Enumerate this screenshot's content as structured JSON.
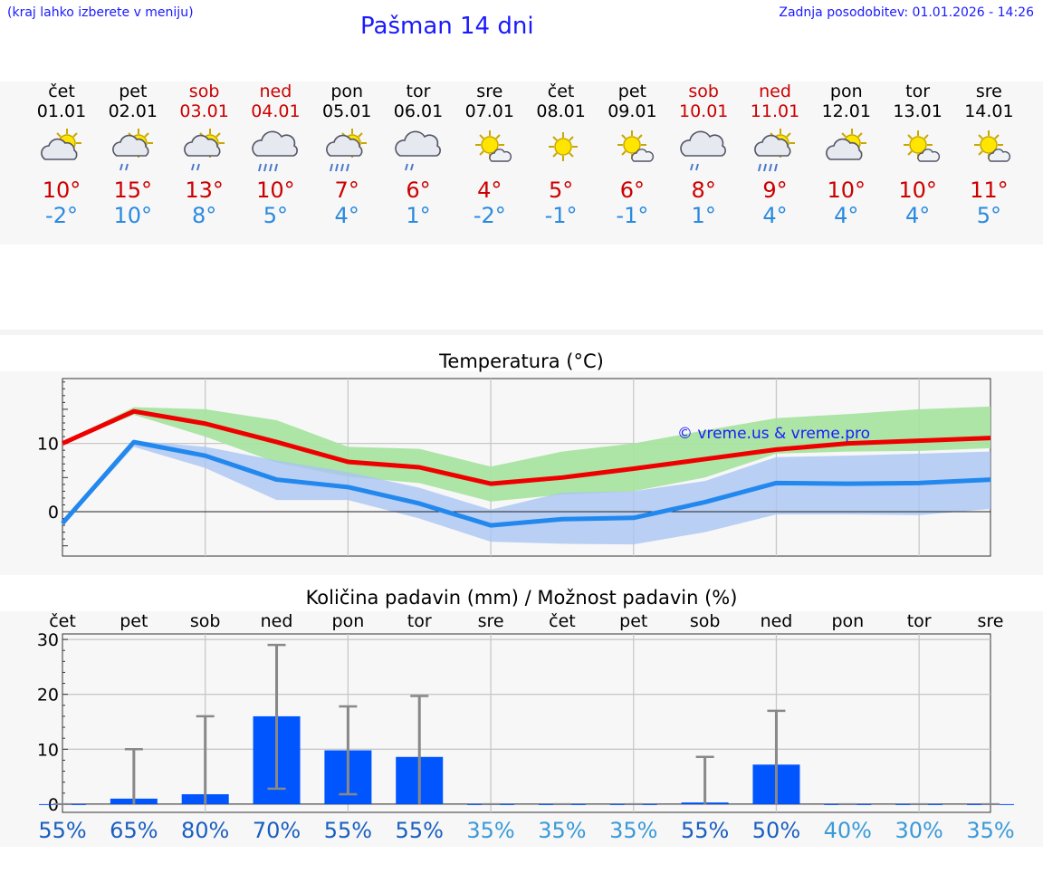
{
  "header": {
    "left_note": "(kraj lahko izberete v meniju)",
    "title": "Pašman 14 dni",
    "updated": "Zadnja posodobitev: 01.01.2026 - 14:26"
  },
  "days": [
    {
      "name": "čet",
      "date": "01.01",
      "weekend": false,
      "icon": "sun-cloud-icon",
      "tmax": "10°",
      "tmin": "-2°"
    },
    {
      "name": "pet",
      "date": "02.01",
      "weekend": false,
      "icon": "sun-cloud-rain-icon",
      "tmax": "15°",
      "tmin": "10°"
    },
    {
      "name": "sob",
      "date": "03.01",
      "weekend": true,
      "icon": "sun-cloud-rain-icon",
      "tmax": "13°",
      "tmin": "8°"
    },
    {
      "name": "ned",
      "date": "04.01",
      "weekend": true,
      "icon": "cloud-heavy-rain-icon",
      "tmax": "10°",
      "tmin": "5°"
    },
    {
      "name": "pon",
      "date": "05.01",
      "weekend": false,
      "icon": "sun-cloud-heavy-rain-icon",
      "tmax": "7°",
      "tmin": "4°"
    },
    {
      "name": "tor",
      "date": "06.01",
      "weekend": false,
      "icon": "cloud-rain-icon",
      "tmax": "6°",
      "tmin": "1°"
    },
    {
      "name": "sre",
      "date": "07.01",
      "weekend": false,
      "icon": "sun-small-cloud-icon",
      "tmax": "4°",
      "tmin": "-2°"
    },
    {
      "name": "čet",
      "date": "08.01",
      "weekend": false,
      "icon": "sun-icon",
      "tmax": "5°",
      "tmin": "-1°"
    },
    {
      "name": "pet",
      "date": "09.01",
      "weekend": false,
      "icon": "sun-small-cloud-icon",
      "tmax": "6°",
      "tmin": "-1°"
    },
    {
      "name": "sob",
      "date": "10.01",
      "weekend": true,
      "icon": "cloud-rain-icon",
      "tmax": "8°",
      "tmin": "1°"
    },
    {
      "name": "ned",
      "date": "11.01",
      "weekend": true,
      "icon": "sun-cloud-heavy-rain-icon",
      "tmax": "9°",
      "tmin": "4°"
    },
    {
      "name": "pon",
      "date": "12.01",
      "weekend": false,
      "icon": "sun-cloud-icon",
      "tmax": "10°",
      "tmin": "4°"
    },
    {
      "name": "tor",
      "date": "13.01",
      "weekend": false,
      "icon": "sun-small-cloud-icon",
      "tmax": "10°",
      "tmin": "4°"
    },
    {
      "name": "sre",
      "date": "14.01",
      "weekend": false,
      "icon": "sun-small-cloud-icon",
      "tmax": "11°",
      "tmin": "5°"
    }
  ],
  "colors": {
    "red": "#ee0000",
    "blue": "#2288ee",
    "green_band": "#a8e4a0",
    "blue_band": "#aac4f2",
    "bar": "#0055ff",
    "whisker": "#888888"
  },
  "chart_data": [
    {
      "type": "line",
      "title": "Temperatura (°C)",
      "watermark": "© vreme.us & vreme.pro",
      "x": [
        0,
        1,
        2,
        3,
        4,
        5,
        6,
        7,
        8,
        9,
        10,
        11,
        12,
        13
      ],
      "ylim": [
        -6.5,
        19.5
      ],
      "yticks": [
        0,
        10
      ],
      "series": [
        {
          "name": "max",
          "values": [
            10,
            14.7,
            12.9,
            10.2,
            7.3,
            6.5,
            4.1,
            5.0,
            6.3,
            7.7,
            9.1,
            10.0,
            10.4,
            10.8
          ]
        },
        {
          "name": "min",
          "values": [
            -1.7,
            10.2,
            8.2,
            4.7,
            3.6,
            1.2,
            -2.0,
            -1.1,
            -0.9,
            1.4,
            4.2,
            4.1,
            4.2,
            4.7
          ]
        }
      ],
      "bands": [
        {
          "name": "max-range",
          "upper": [
            10.2,
            15.3,
            15.0,
            13.4,
            9.5,
            9.2,
            6.6,
            8.8,
            10.0,
            11.9,
            13.7,
            14.3,
            15.0,
            15.4
          ],
          "lower": [
            9.8,
            14.2,
            11.0,
            7.2,
            5.1,
            4.2,
            1.5,
            2.5,
            3.0,
            5.0,
            8.5,
            8.8,
            8.9,
            9.3
          ]
        },
        {
          "name": "min-range",
          "upper": [
            -1.5,
            10.4,
            9.5,
            7.5,
            5.8,
            3.5,
            0.3,
            2.8,
            3.0,
            4.5,
            8.0,
            8.2,
            8.5,
            8.8
          ],
          "lower": [
            -2.0,
            9.5,
            6.4,
            1.7,
            1.7,
            -1.0,
            -4.4,
            -4.7,
            -4.8,
            -3.0,
            -0.4,
            -0.4,
            -0.5,
            0.4
          ]
        }
      ]
    },
    {
      "type": "bar",
      "title": "Količina padavin (mm) / Možnost padavin (%)",
      "categories": [
        "čet",
        "pet",
        "sob",
        "ned",
        "pon",
        "tor",
        "sre",
        "čet",
        "pet",
        "sob",
        "ned",
        "pon",
        "tor",
        "sre"
      ],
      "values": [
        0,
        1,
        1.8,
        16,
        9.8,
        8.6,
        0,
        0,
        0,
        0.3,
        7.2,
        0,
        0,
        0
      ],
      "err_high": [
        0,
        10,
        16,
        29,
        17.8,
        19.7,
        0,
        0,
        0,
        8.6,
        17,
        0,
        0,
        0
      ],
      "err_low": [
        0,
        0,
        0,
        2.8,
        1.8,
        0,
        0,
        0,
        0,
        0,
        0,
        0,
        0,
        0
      ],
      "ylim": [
        -1.5,
        31
      ],
      "yticks": [
        0,
        10,
        20,
        30
      ],
      "probabilities": [
        "55%",
        "65%",
        "80%",
        "70%",
        "55%",
        "55%",
        "35%",
        "35%",
        "35%",
        "55%",
        "50%",
        "40%",
        "30%",
        "35%"
      ]
    }
  ]
}
